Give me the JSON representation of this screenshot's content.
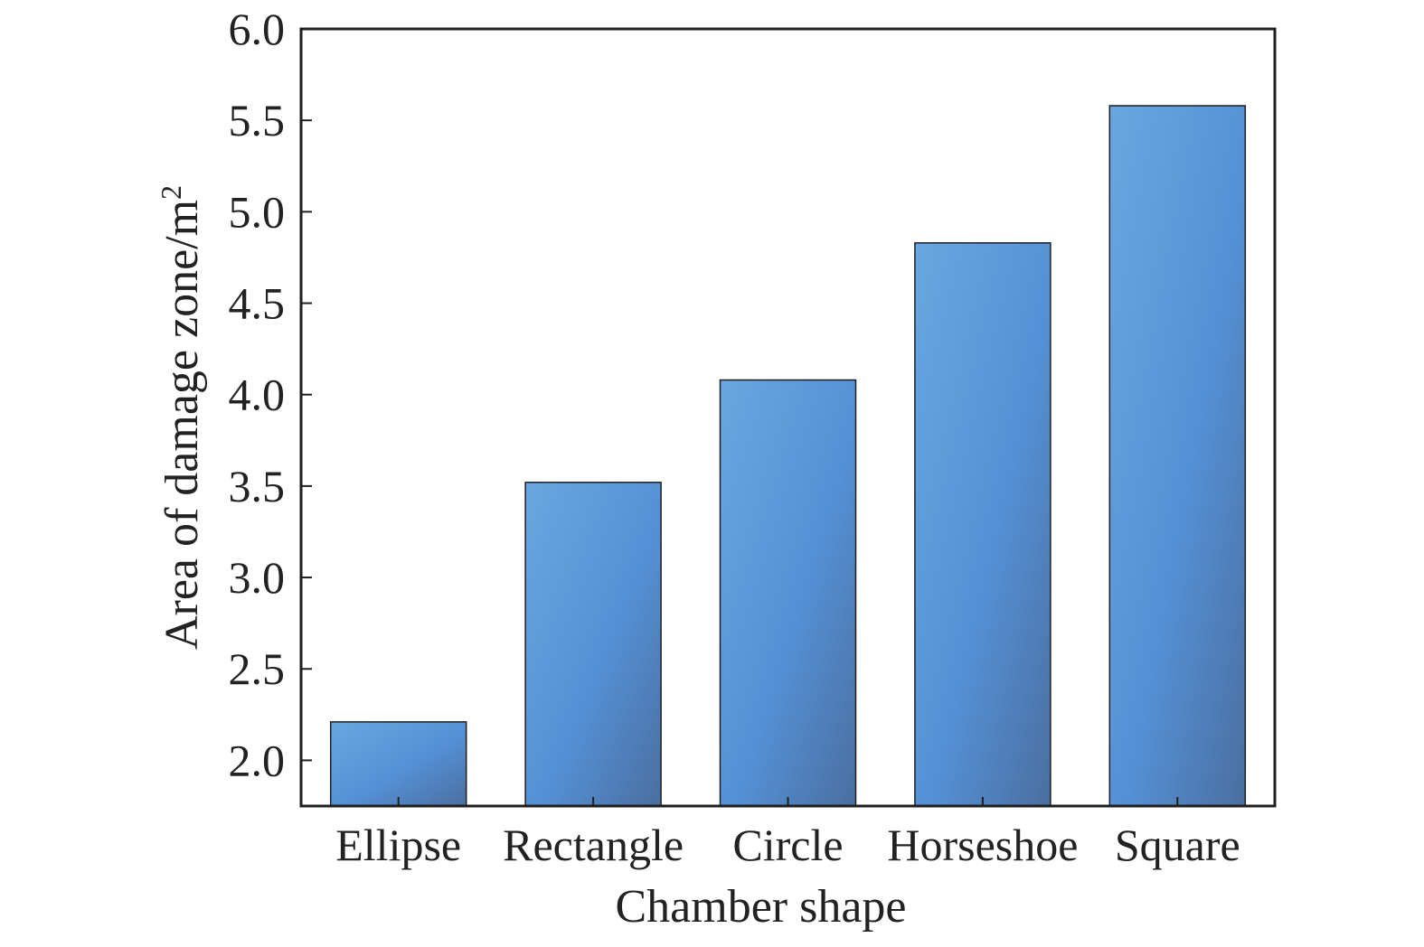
{
  "chart_data": {
    "type": "bar",
    "categories": [
      "Ellipse",
      "Rectangle",
      "Circle",
      "Horseshoe",
      "Square"
    ],
    "values": [
      2.21,
      3.52,
      4.08,
      4.83,
      5.58
    ],
    "xlabel": "Chamber shape",
    "ylabel": "Area of damage zone/m",
    "ylabel_superscript": "2",
    "ylim": [
      1.75,
      6.0
    ],
    "yticks": [
      "2.0",
      "2.5",
      "3.0",
      "3.5",
      "4.0",
      "4.5",
      "5.0",
      "5.5",
      "6.0"
    ],
    "grid": false,
    "legend": "none",
    "bar_color": "#5a93d6",
    "bar_color_dark": "#4a74a8"
  }
}
